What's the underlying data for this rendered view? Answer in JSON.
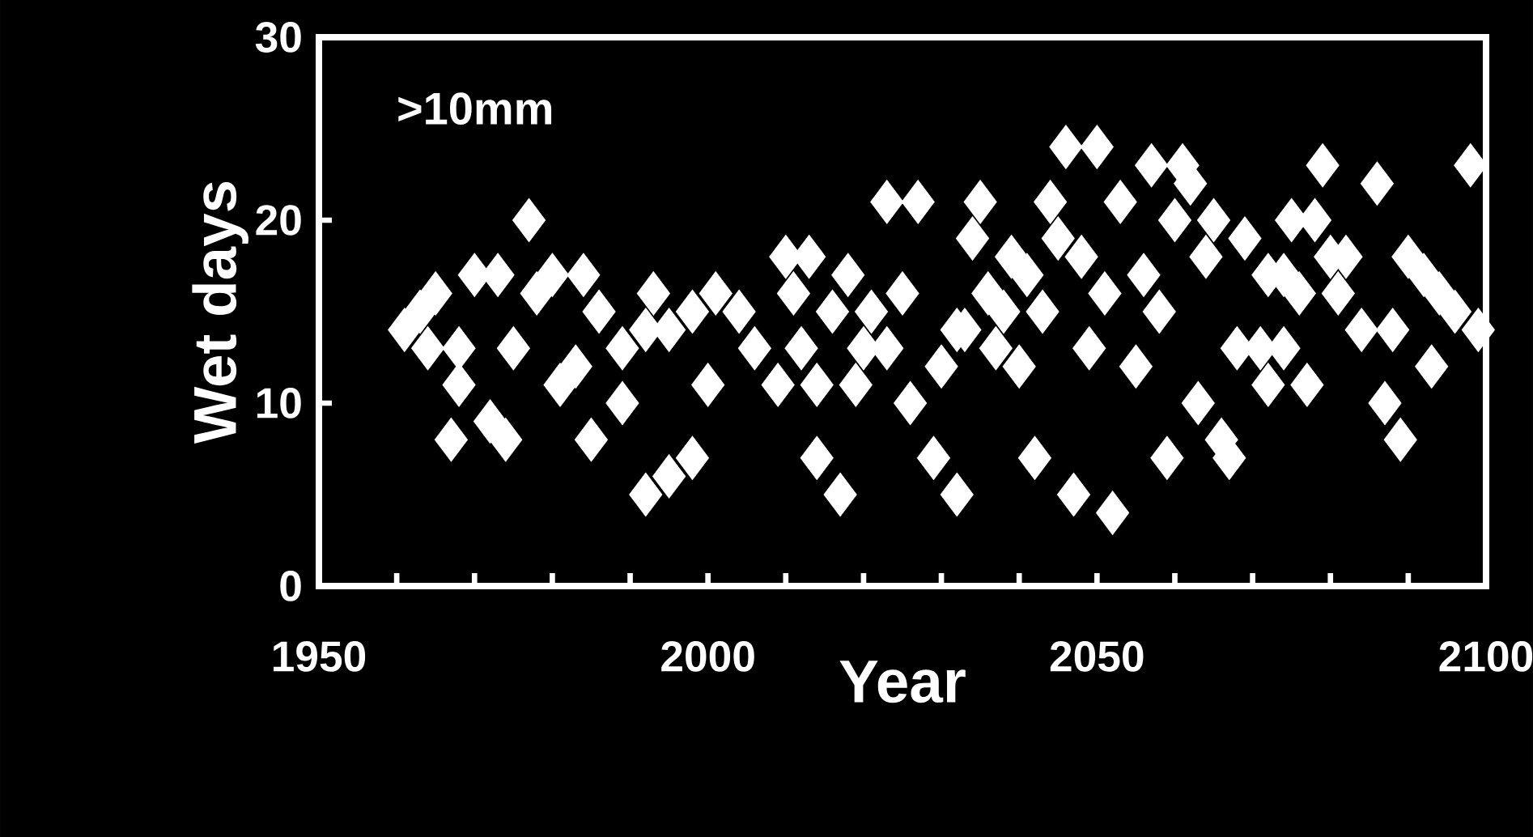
{
  "chart_data": {
    "type": "scatter",
    "xlabel": "Year",
    "ylabel": "Wet days",
    "annotations": [
      ">10mm"
    ],
    "xlim": [
      1950,
      2100
    ],
    "ylim": [
      0,
      30
    ],
    "xticks": [
      1950,
      {
        "value": 1960,
        "label": null
      },
      {
        "value": 1970,
        "label": null
      },
      {
        "value": 1980,
        "label": null
      },
      {
        "value": 1990,
        "label": null
      },
      2000,
      {
        "value": 2010,
        "label": null
      },
      {
        "value": 2020,
        "label": null
      },
      {
        "value": 2030,
        "label": null
      },
      {
        "value": 2040,
        "label": null
      },
      2050,
      {
        "value": 2060,
        "label": null
      },
      {
        "value": 2070,
        "label": null
      },
      {
        "value": 2080,
        "label": null
      },
      {
        "value": 2090,
        "label": null
      },
      2100
    ],
    "yticks": [
      0,
      10,
      20,
      30
    ],
    "marker": "diamond",
    "color": "#ffffff",
    "x": [
      1961,
      1963,
      1964,
      1965,
      1967,
      1968,
      1968,
      1970,
      1972,
      1973,
      1974,
      1975,
      1977,
      1978,
      1980,
      1981,
      1983,
      1984,
      1985,
      1986,
      1989,
      1989,
      1992,
      1992,
      1993,
      1995,
      1995,
      1998,
      1998,
      2000,
      2001,
      2004,
      2006,
      2009,
      2010,
      2011,
      2012,
      2013,
      2014,
      2014,
      2016,
      2017,
      2018,
      2019,
      2020,
      2021,
      2023,
      2023,
      2025,
      2026,
      2027,
      2029,
      2030,
      2032,
      2032,
      2033,
      2034,
      2035,
      2036,
      2037,
      2038,
      2039,
      2040,
      2041,
      2042,
      2043,
      2044,
      2045,
      2046,
      2047,
      2048,
      2049,
      2050,
      2051,
      2052,
      2053,
      2055,
      2056,
      2057,
      2058,
      2059,
      2060,
      2061,
      2062,
      2063,
      2064,
      2065,
      2066,
      2067,
      2068,
      2069,
      2071,
      2072,
      2072,
      2074,
      2074,
      2075,
      2076,
      2077,
      2078,
      2079,
      2080,
      2081,
      2082,
      2084,
      2086,
      2087,
      2088,
      2089,
      2090,
      2092,
      2093,
      2094,
      2096,
      2098,
      2099
    ],
    "values": [
      14,
      15,
      13,
      16,
      8,
      13,
      11,
      17,
      9,
      17,
      8,
      13,
      20,
      16,
      17,
      11,
      12,
      17,
      8,
      15,
      10,
      13,
      14,
      5,
      16,
      6,
      14,
      15,
      7,
      11,
      16,
      15,
      13,
      11,
      18,
      16,
      13,
      18,
      11,
      7,
      15,
      5,
      17,
      11,
      13,
      15,
      21,
      13,
      16,
      10,
      21,
      7,
      12,
      14,
      5,
      14,
      19,
      21,
      16,
      13,
      15,
      18,
      12,
      17,
      7,
      15,
      21,
      19,
      24,
      5,
      18,
      13,
      24,
      16,
      4,
      21,
      12,
      17,
      23,
      15,
      7,
      20,
      23,
      22,
      10,
      18,
      20,
      8,
      7,
      13,
      19,
      13,
      17,
      11,
      17,
      13,
      20,
      16,
      11,
      20,
      23,
      18,
      16,
      18,
      14,
      22,
      10,
      14,
      8,
      18,
      17,
      12,
      16,
      15,
      23,
      14
    ]
  }
}
